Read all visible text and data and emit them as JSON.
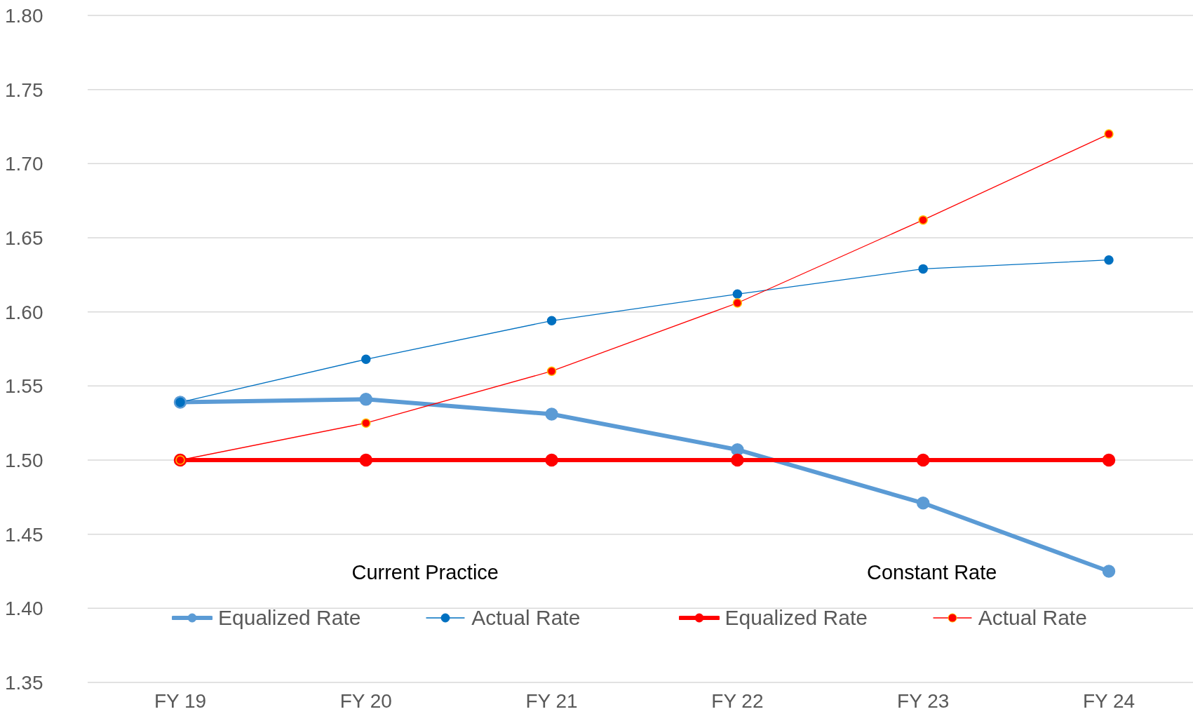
{
  "chart_data": {
    "type": "line",
    "categories": [
      "FY 19",
      "FY 20",
      "FY 21",
      "FY 22",
      "FY 23",
      "FY 24"
    ],
    "series": [
      {
        "name": "Equalized Rate",
        "color": "#5b9bd5",
        "values": [
          1.539,
          1.541,
          1.531,
          1.507,
          1.471,
          1.425
        ]
      },
      {
        "name": "Actual Rate",
        "color": "#0070c0",
        "values": [
          1.539,
          1.568,
          1.594,
          1.612,
          1.629,
          1.635
        ]
      },
      {
        "name": "Equalized Rate",
        "color": "#ff0000",
        "values": [
          1.5,
          1.5,
          1.5,
          1.5,
          1.5,
          1.5
        ]
      },
      {
        "name": "Actual Rate",
        "color": "#ff0000",
        "values": [
          1.5,
          1.525,
          1.56,
          1.606,
          1.662,
          1.72
        ]
      }
    ],
    "ylim": [
      1.35,
      1.8
    ],
    "yticks": [
      {
        "value": 1.35,
        "label": "1.35"
      },
      {
        "value": 1.4,
        "label": "1.40"
      },
      {
        "value": 1.45,
        "label": "1.45"
      },
      {
        "value": 1.5,
        "label": "1.50"
      },
      {
        "value": 1.55,
        "label": "1.55"
      },
      {
        "value": 1.6,
        "label": "1.60"
      },
      {
        "value": 1.65,
        "label": "1.65"
      },
      {
        "value": 1.7,
        "label": "1.70"
      },
      {
        "value": 1.75,
        "label": "1.75"
      },
      {
        "value": 1.8,
        "label": "1.80"
      }
    ],
    "grid": "y",
    "legend": "bottom",
    "marker": "circle",
    "line_style": "solid",
    "annotations": [
      "Current Practice",
      "Constant Rate"
    ]
  }
}
